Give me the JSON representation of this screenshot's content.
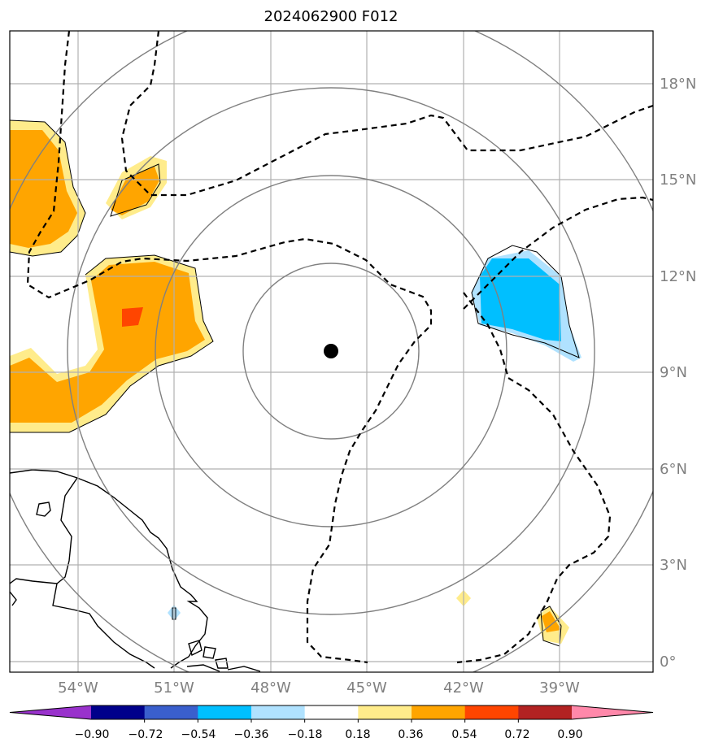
{
  "title": "2024062900 F012",
  "map": {
    "lon_labels": [
      "54°W",
      "51°W",
      "48°W",
      "45°W",
      "42°W",
      "39°W"
    ],
    "lat_labels": [
      "18°N",
      "15°N",
      "12°N",
      "9°N",
      "6°N",
      "3°N",
      "0°"
    ],
    "center_marker": "storm-center-dot",
    "range_rings": 4
  },
  "colorbar": {
    "labels": [
      "−0.90",
      "−0.72",
      "−0.54",
      "−0.36",
      "−0.18",
      "0.18",
      "0.36",
      "0.54",
      "0.72",
      "0.90"
    ],
    "colors": [
      "#9932cc",
      "#00008b",
      "#3a5fcd",
      "#00bfff",
      "#b0e2ff",
      "#ffffff",
      "#ffec8b",
      "#ffa500",
      "#ff4500",
      "#b22222",
      "#ff88aa"
    ]
  }
}
